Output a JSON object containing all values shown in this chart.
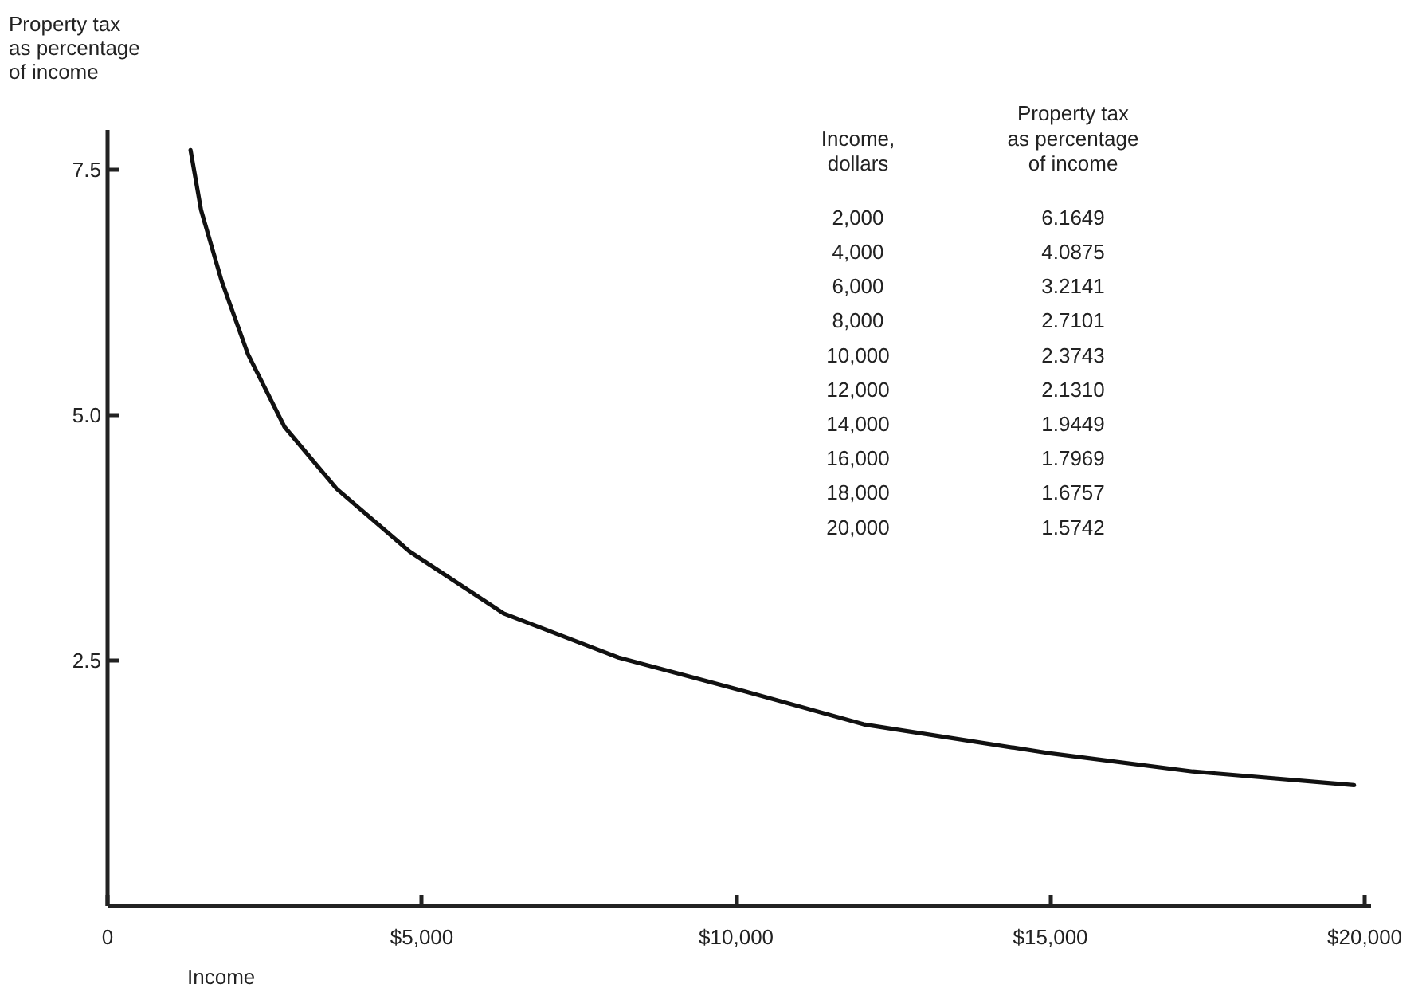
{
  "chart_data": {
    "type": "line",
    "xlabel": "Income",
    "ylabel": "Property tax as percentage of income",
    "x": [
      1320,
      1487,
      1818,
      2234,
      2815,
      3644,
      4807,
      6301,
      8128,
      10120,
      12030,
      14940,
      17260,
      19830
    ],
    "series": [
      {
        "color": "#111111",
        "values": [
          7.7,
          7.09,
          6.36,
          5.62,
          4.88,
          4.25,
          3.61,
          2.98,
          2.53,
          2.19,
          1.85,
          1.56,
          1.37,
          1.23
        ]
      }
    ],
    "xlim": [
      0,
      20100
    ],
    "ylim": [
      0,
      7.9
    ],
    "xticks": [
      {
        "value": 0,
        "label": "0"
      },
      {
        "value": 5000,
        "label": "$5,000"
      },
      {
        "value": 10000,
        "label": "$10,000"
      },
      {
        "value": 15000,
        "label": "$15,000"
      },
      {
        "value": 20000,
        "label": "$20,000"
      }
    ],
    "yticks": [
      2.5,
      {
        "value": 5,
        "label": "5.0"
      },
      7.5
    ],
    "grid": false,
    "marker": "none",
    "line_style": "solid",
    "annotations": [
      "Income,\ndollars",
      "Property tax\nas percentage\nof income",
      "2,000",
      "6.1649",
      "4,000",
      "4.0875",
      "6,000",
      "3.2141",
      "8,000",
      "2.7101",
      "10,000",
      "2.3743",
      "12,000",
      "2.1310",
      "14,000",
      "1.9449",
      "16,000",
      "1.7969",
      "18,000",
      "1.6757",
      "20,000",
      "1.5742"
    ]
  }
}
